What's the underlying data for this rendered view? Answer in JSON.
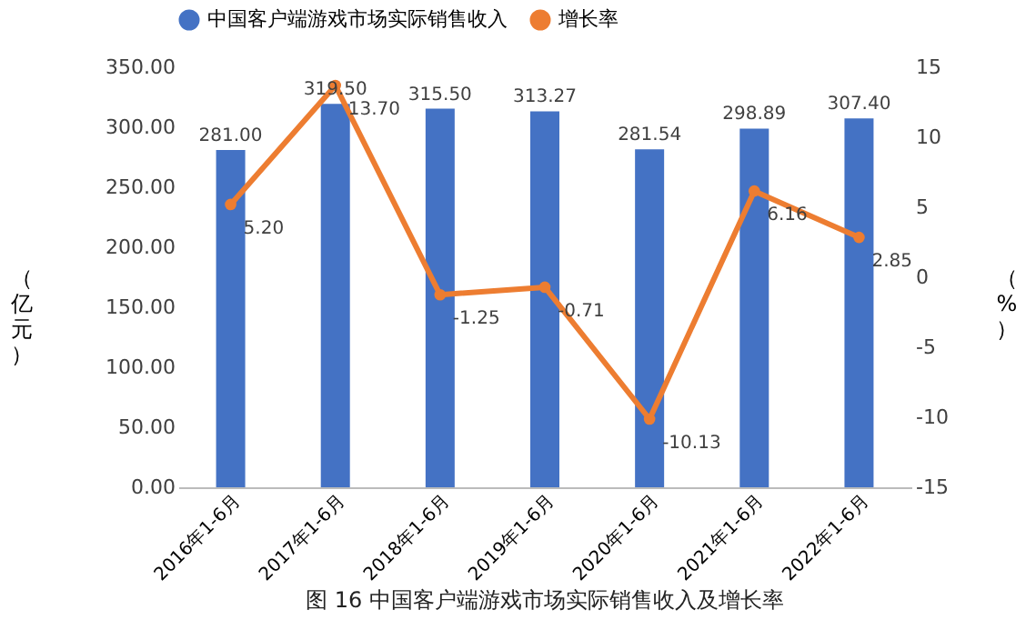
{
  "chart_data": {
    "type": "bar",
    "title": "图 16 中国客户端游戏市场实际销售收入及增长率",
    "ylabel": "（亿元）",
    "y2label": "（%）",
    "categories": [
      "2016年1-6月",
      "2017年1-6月",
      "2018年1-6月",
      "2019年1-6月",
      "2020年1-6月",
      "2021年1-6月",
      "2022年1-6月"
    ],
    "series": [
      {
        "name": "中国客户端游戏市场实际销售收入",
        "color": "#4472c4",
        "values": [
          281.0,
          319.5,
          315.5,
          313.27,
          281.54,
          298.89,
          307.4
        ],
        "value_labels": [
          "281.00",
          "319.50",
          "315.50",
          "313.27",
          "281.54",
          "298.89",
          "307.40"
        ]
      },
      {
        "name": "增长率",
        "type": "line",
        "axis": "y2",
        "color": "#ed7d31",
        "marker": "circle",
        "values": [
          5.2,
          13.7,
          -1.25,
          -0.71,
          -10.13,
          6.16,
          2.85
        ],
        "value_labels": [
          "5.20",
          "13.70",
          "-1.25",
          "-0.71",
          "-10.13",
          "6.16",
          "2.85"
        ]
      }
    ],
    "ylim": [
      0,
      350
    ],
    "yticks": [
      {
        "value": 0,
        "label": "0.00"
      },
      {
        "value": 50,
        "label": "50.00"
      },
      {
        "value": 100,
        "label": "100.00"
      },
      {
        "value": 150,
        "label": "150.00"
      },
      {
        "value": 200,
        "label": "200.00"
      },
      {
        "value": 250,
        "label": "250.00"
      },
      {
        "value": 300,
        "label": "300.00"
      },
      {
        "value": 350,
        "label": "350.00"
      }
    ],
    "y2lim": [
      -15,
      15
    ],
    "y2ticks": [
      -15,
      -10,
      -5,
      0,
      5,
      10,
      15
    ],
    "legend": "top",
    "grid": false
  }
}
